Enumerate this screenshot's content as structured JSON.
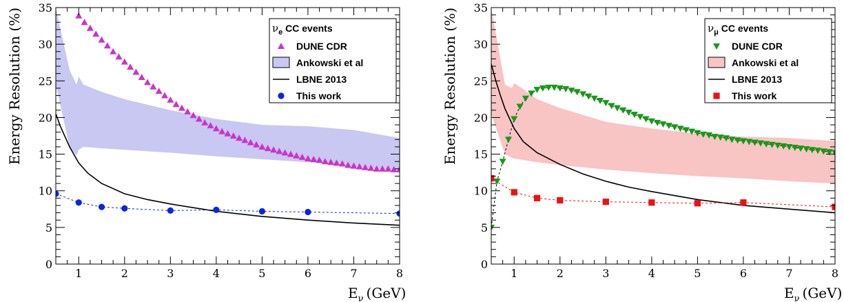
{
  "chart_data": [
    {
      "type": "scatter",
      "xlabel": "E",
      "xlabel_sub": "ν",
      "xlabel_unit": "(GeV)",
      "ylabel": "Energy Resolution (%)",
      "xlim": [
        0.5,
        8
      ],
      "ylim": [
        0,
        35
      ],
      "x_ticks": [
        1,
        2,
        3,
        4,
        5,
        6,
        7,
        8
      ],
      "y_ticks": [
        0,
        5,
        10,
        15,
        20,
        25,
        30,
        35
      ],
      "legend_title": "ν",
      "legend_title_sub": "e",
      "legend_title_rest": " CC events",
      "legend_position": "top-right",
      "series": [
        {
          "name": "DUNE CDR",
          "kind": "markers",
          "marker": "triangle-up",
          "color": "#cc33cc",
          "x": [
            1.0,
            1.125,
            1.25,
            1.375,
            1.5,
            1.625,
            1.75,
            1.875,
            2.0,
            2.125,
            2.25,
            2.375,
            2.5,
            2.625,
            2.75,
            2.875,
            3.0,
            3.125,
            3.25,
            3.375,
            3.5,
            3.625,
            3.75,
            3.875,
            4.0,
            4.125,
            4.25,
            4.375,
            4.5,
            4.625,
            4.75,
            4.875,
            5.0,
            5.125,
            5.25,
            5.375,
            5.5,
            5.625,
            5.75,
            5.875,
            6.0,
            6.125,
            6.25,
            6.375,
            6.5,
            6.625,
            6.75,
            6.875,
            7.0,
            7.125,
            7.25,
            7.375,
            7.5,
            7.625,
            7.75,
            7.875,
            8.0
          ],
          "y": [
            33.9,
            33.0,
            32.2,
            31.4,
            30.6,
            29.8,
            29.0,
            28.3,
            27.6,
            26.9,
            26.2,
            25.5,
            24.8,
            24.2,
            23.6,
            23.0,
            22.4,
            21.8,
            21.3,
            20.8,
            20.3,
            19.8,
            19.3,
            18.9,
            18.5,
            18.1,
            17.8,
            17.5,
            17.2,
            16.9,
            16.6,
            16.3,
            16.0,
            15.8,
            15.6,
            15.4,
            15.2,
            15.0,
            14.8,
            14.6,
            14.4,
            14.3,
            14.2,
            14.0,
            13.9,
            13.8,
            13.7,
            13.5,
            13.4,
            13.3,
            13.2,
            13.1,
            13.0,
            13.0,
            13.0,
            12.9,
            12.9
          ]
        },
        {
          "name": "Ankowski et al",
          "kind": "band",
          "color": "#c8c8f2",
          "x": [
            0.5,
            0.8,
            0.95,
            1.0,
            1.1,
            1.5,
            2.0,
            3.0,
            4.0,
            5.0,
            6.0,
            7.0,
            8.0
          ],
          "upper": [
            35,
            26.5,
            24.5,
            25.6,
            24.5,
            23.5,
            22.5,
            21.0,
            19.8,
            19.0,
            18.8,
            18.3,
            17.2
          ],
          "lower": [
            24.5,
            16.0,
            14.8,
            15.6,
            16.0,
            15.8,
            15.6,
            15.2,
            14.7,
            14.3,
            13.9,
            13.3,
            12.8
          ]
        },
        {
          "name": "LBNE 2013",
          "kind": "line",
          "color": "#000000",
          "x": [
            0.5,
            0.6,
            0.7,
            0.8,
            1.0,
            1.2,
            1.5,
            2.0,
            2.5,
            3.0,
            3.5,
            4.0,
            5.0,
            6.0,
            7.0,
            8.0
          ],
          "y": [
            20.5,
            18.8,
            17.4,
            16.0,
            13.8,
            12.4,
            11.0,
            9.6,
            8.8,
            8.2,
            7.7,
            7.2,
            6.5,
            6.0,
            5.6,
            5.3
          ]
        },
        {
          "name": "This work",
          "kind": "markers+dashed",
          "marker": "circle",
          "color": "#0b24e6",
          "x": [
            0.5,
            1.0,
            1.5,
            2.0,
            3.0,
            4.0,
            5.0,
            6.0,
            8.0
          ],
          "y": [
            9.6,
            8.4,
            7.8,
            7.6,
            7.3,
            7.4,
            7.2,
            7.1,
            6.9
          ]
        }
      ]
    },
    {
      "type": "scatter",
      "xlabel": "E",
      "xlabel_sub": "ν",
      "xlabel_unit": "(GeV)",
      "ylabel": "Energy Resolution (%)",
      "xlim": [
        0.5,
        8
      ],
      "ylim": [
        0,
        35
      ],
      "x_ticks": [
        1,
        2,
        3,
        4,
        5,
        6,
        7,
        8
      ],
      "y_ticks": [
        0,
        5,
        10,
        15,
        20,
        25,
        30,
        35
      ],
      "legend_title": "ν",
      "legend_title_sub": "μ",
      "legend_title_rest": " CC events",
      "legend_position": "top-right",
      "series": [
        {
          "name": "DUNE CDR",
          "kind": "markers+dashed",
          "marker": "triangle-down",
          "color": "#159a15",
          "x": [
            0.5,
            0.625,
            0.75,
            0.875,
            1.0,
            1.125,
            1.25,
            1.375,
            1.5,
            1.625,
            1.75,
            1.875,
            2.0,
            2.125,
            2.25,
            2.375,
            2.5,
            2.625,
            2.75,
            2.875,
            3.0,
            3.125,
            3.25,
            3.375,
            3.5,
            3.625,
            3.75,
            3.875,
            4.0,
            4.125,
            4.25,
            4.375,
            4.5,
            4.625,
            4.75,
            4.875,
            5.0,
            5.125,
            5.25,
            5.375,
            5.5,
            5.625,
            5.75,
            5.875,
            6.0,
            6.125,
            6.25,
            6.375,
            6.5,
            6.625,
            6.75,
            6.875,
            7.0,
            7.125,
            7.25,
            7.375,
            7.5,
            7.625,
            7.75,
            7.875,
            8.0
          ],
          "y": [
            5.0,
            11.3,
            14.0,
            17.0,
            19.8,
            21.5,
            22.6,
            23.3,
            23.8,
            24.0,
            24.1,
            24.1,
            24.0,
            23.9,
            23.7,
            23.5,
            23.2,
            22.9,
            22.6,
            22.3,
            22.0,
            21.6,
            21.3,
            21.0,
            20.7,
            20.4,
            20.1,
            19.8,
            19.5,
            19.3,
            19.1,
            18.9,
            18.7,
            18.5,
            18.3,
            18.1,
            17.9,
            17.7,
            17.6,
            17.4,
            17.3,
            17.2,
            17.0,
            16.9,
            16.8,
            16.7,
            16.6,
            16.5,
            16.4,
            16.3,
            16.2,
            16.1,
            16.0,
            15.9,
            15.8,
            15.7,
            15.6,
            15.5,
            15.4,
            15.3,
            15.2
          ]
        },
        {
          "name": "Ankowski et al",
          "kind": "band",
          "color": "#f8c4c4",
          "x": [
            0.5,
            0.8,
            0.95,
            1.0,
            1.1,
            1.5,
            2.0,
            3.0,
            4.0,
            5.0,
            6.0,
            7.0,
            8.0
          ],
          "upper": [
            35,
            24.5,
            24.0,
            24.7,
            24.3,
            22.5,
            21.3,
            19.4,
            18.5,
            17.8,
            17.4,
            17.2,
            16.8
          ],
          "lower": [
            20.5,
            15.0,
            14.5,
            14.4,
            14.3,
            13.9,
            13.5,
            12.9,
            12.4,
            12.0,
            11.7,
            11.3,
            11.0
          ]
        },
        {
          "name": "LBNE 2013",
          "kind": "line",
          "color": "#000000",
          "x": [
            0.5,
            0.6,
            0.7,
            0.8,
            1.0,
            1.2,
            1.5,
            2.0,
            2.5,
            3.0,
            3.5,
            4.0,
            5.0,
            6.0,
            7.0,
            8.0
          ],
          "y": [
            27.3,
            25.0,
            23.0,
            21.2,
            18.5,
            16.7,
            15.2,
            13.6,
            12.3,
            11.3,
            10.5,
            9.9,
            8.8,
            8.0,
            7.5,
            7.0
          ]
        },
        {
          "name": "This work",
          "kind": "markers+dashed",
          "marker": "square",
          "color": "#ee1111",
          "x": [
            0.5,
            1.0,
            1.5,
            2.0,
            3.0,
            4.0,
            5.0,
            6.0,
            8.0
          ],
          "y": [
            11.7,
            9.8,
            9.0,
            8.7,
            8.5,
            8.4,
            8.3,
            8.4,
            7.8
          ]
        }
      ]
    }
  ]
}
